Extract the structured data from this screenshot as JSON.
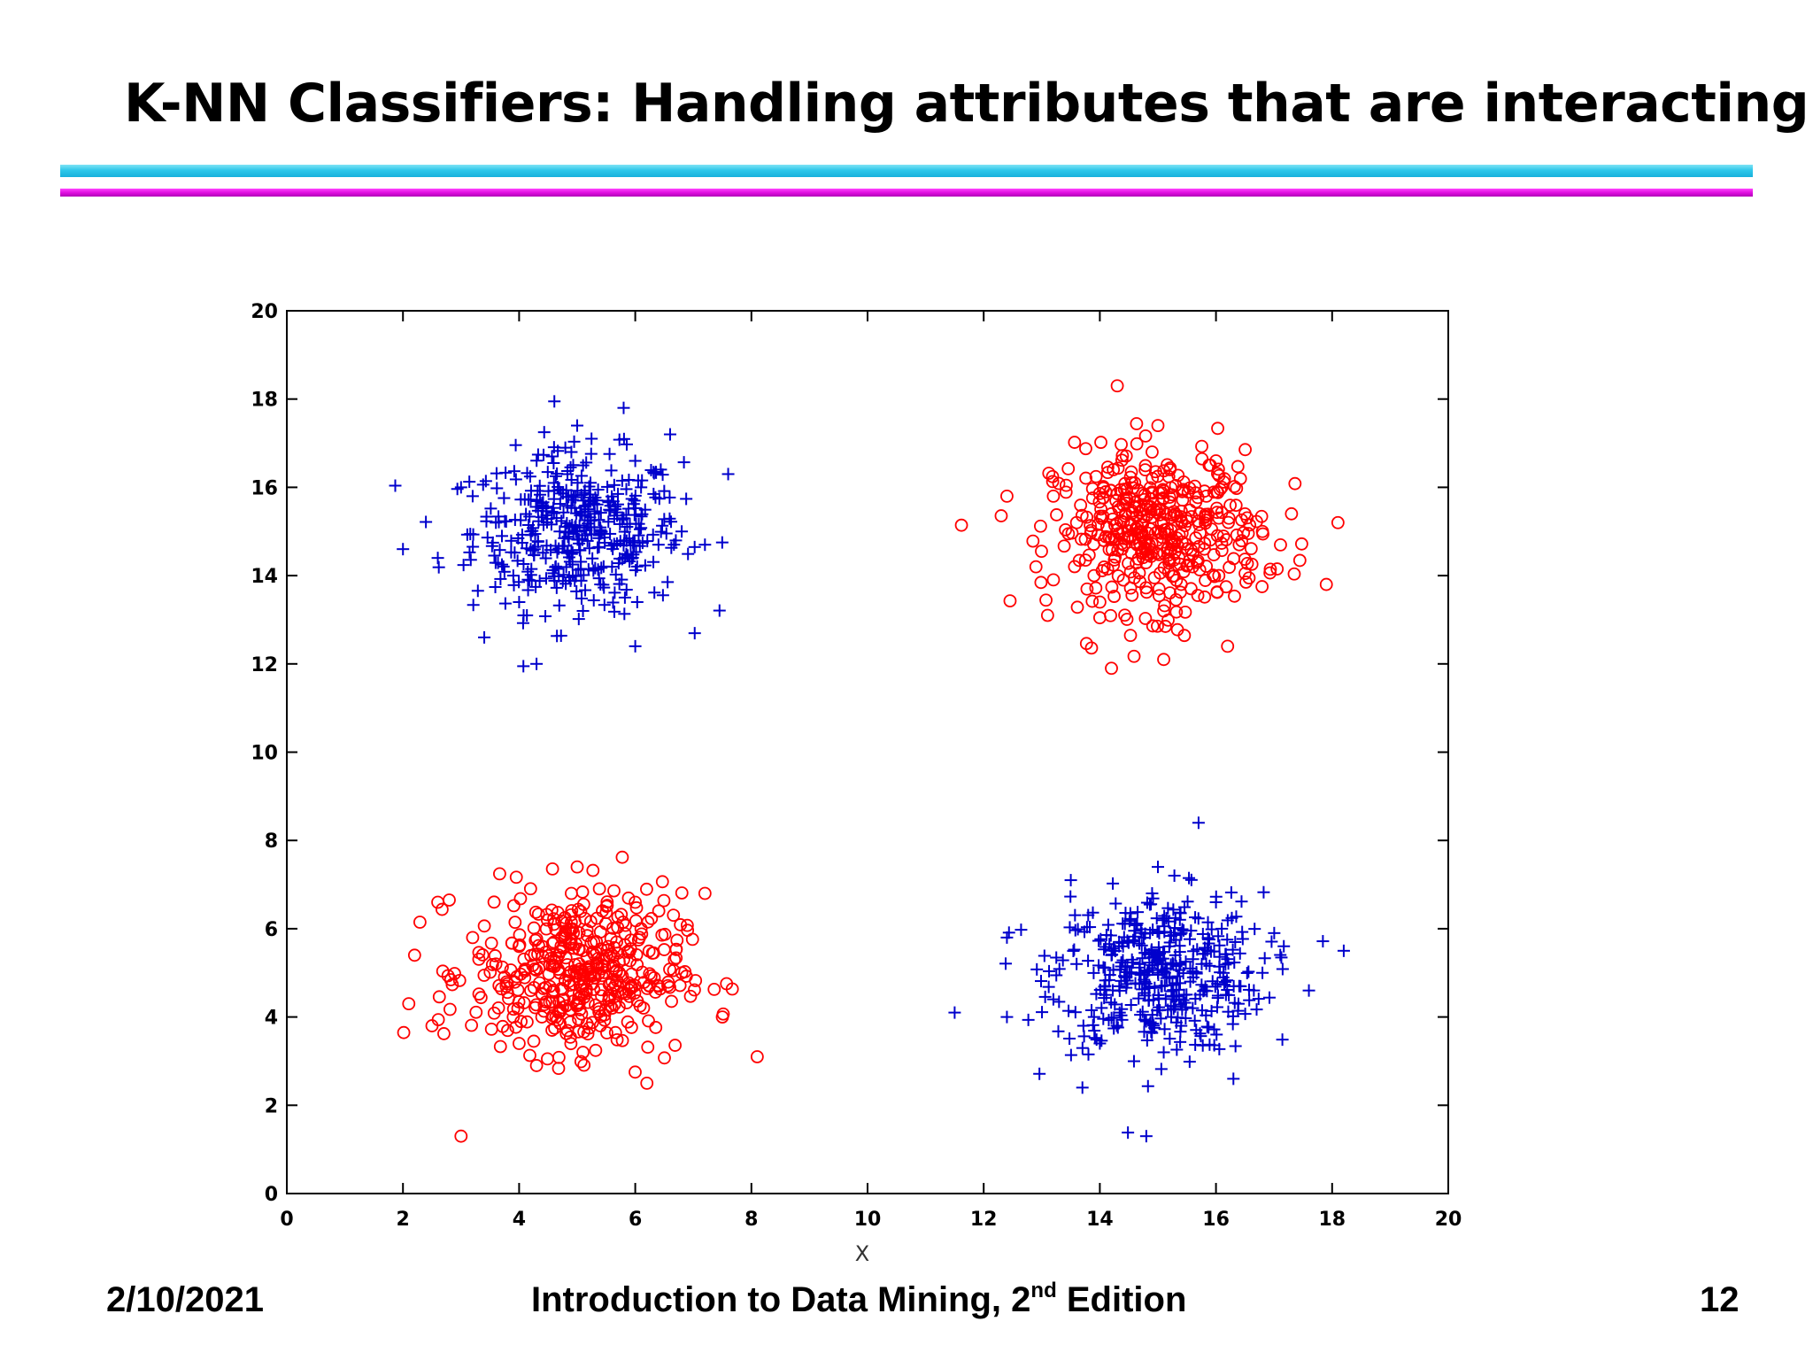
{
  "slide": {
    "title": "K-NN Classifiers: Handling attributes that are interacting"
  },
  "footer": {
    "date": "2/10/2021",
    "book_title_prefix": "Introduction to Data Mining, 2",
    "book_title_sup": "nd",
    "book_title_suffix": " Edition",
    "page_number": "12"
  },
  "chart_data": {
    "type": "scatter",
    "title": "",
    "xlabel": "X",
    "ylabel": "",
    "xlim": [
      0,
      20
    ],
    "ylim": [
      0,
      20
    ],
    "x_ticks": [
      "0",
      "2",
      "4",
      "6",
      "8",
      "10",
      "12",
      "14",
      "16",
      "18",
      "20"
    ],
    "y_ticks": [
      "0",
      "2",
      "4",
      "6",
      "8",
      "10",
      "12",
      "14",
      "16",
      "18",
      "20"
    ],
    "grid": false,
    "legend": "none",
    "series": [
      {
        "marker": "plus",
        "color": "#0000cc",
        "clusters": [
          {
            "center": [
              5,
              15
            ],
            "spread": 0.9
          },
          {
            "center": [
              15,
              5
            ],
            "spread": 0.9
          }
        ],
        "points": [
          [
            5,
            15
          ],
          [
            4.2,
            14.6
          ],
          [
            5.8,
            15.3
          ],
          [
            4.6,
            16.1
          ],
          [
            5.4,
            13.8
          ],
          [
            3.6,
            15.2
          ],
          [
            6.4,
            14.7
          ],
          [
            4.9,
            16.8
          ],
          [
            5.1,
            13.2
          ],
          [
            3.9,
            14
          ],
          [
            6.1,
            16
          ],
          [
            4.4,
            15.6
          ],
          [
            5.6,
            14.2
          ],
          [
            4.7,
            15
          ],
          [
            5.3,
            15.4
          ],
          [
            3.2,
            15.8
          ],
          [
            6.8,
            15
          ],
          [
            4,
            13.4
          ],
          [
            6,
            16.6
          ],
          [
            5,
            17.4
          ],
          [
            2,
            14.6
          ],
          [
            2.6,
            14.4
          ],
          [
            3,
            16
          ],
          [
            7.6,
            16.3
          ],
          [
            5.8,
            17.8
          ],
          [
            4.3,
            12
          ],
          [
            6,
            12.4
          ],
          [
            3.4,
            12.6
          ],
          [
            7.2,
            14.7
          ],
          [
            6.6,
            17.2
          ],
          [
            15,
            5
          ],
          [
            14.2,
            5.4
          ],
          [
            15.8,
            4.6
          ],
          [
            14.6,
            6.1
          ],
          [
            15.4,
            3.8
          ],
          [
            13.6,
            5.2
          ],
          [
            16.4,
            4.7
          ],
          [
            14.9,
            6.8
          ],
          [
            15.1,
            3.2
          ],
          [
            13.9,
            4
          ],
          [
            16.1,
            6
          ],
          [
            14.4,
            5.6
          ],
          [
            15.6,
            4.2
          ],
          [
            14.7,
            5
          ],
          [
            15.3,
            5.4
          ],
          [
            13.2,
            4.4
          ],
          [
            16.8,
            5
          ],
          [
            14,
            3.4
          ],
          [
            16,
            6.6
          ],
          [
            15,
            7.4
          ],
          [
            11.5,
            4.1
          ],
          [
            12.4,
            4
          ],
          [
            12.4,
            5.8
          ],
          [
            18.2,
            5.5
          ],
          [
            15.7,
            8.4
          ],
          [
            14.8,
            1.3
          ],
          [
            13.7,
            2.4
          ],
          [
            16.3,
            2.6
          ],
          [
            17.6,
            4.6
          ],
          [
            13.5,
            7.1
          ]
        ]
      },
      {
        "marker": "circle",
        "color": "#ff0000",
        "clusters": [
          {
            "center": [
              15,
              15
            ],
            "spread": 0.9
          },
          {
            "center": [
              5,
              5
            ],
            "spread": 0.9
          }
        ],
        "points": [
          [
            15,
            15
          ],
          [
            14.2,
            15.4
          ],
          [
            15.8,
            14.6
          ],
          [
            14.6,
            16.1
          ],
          [
            15.4,
            13.8
          ],
          [
            13.6,
            15.2
          ],
          [
            16.4,
            14.7
          ],
          [
            14.9,
            16.8
          ],
          [
            15.1,
            13.2
          ],
          [
            13.9,
            14
          ],
          [
            16.1,
            16
          ],
          [
            14.4,
            15.6
          ],
          [
            15.6,
            14.2
          ],
          [
            14.7,
            15
          ],
          [
            15.3,
            15.4
          ],
          [
            13.2,
            15.8
          ],
          [
            16.8,
            15
          ],
          [
            14,
            13.4
          ],
          [
            16,
            16.6
          ],
          [
            15,
            17.4
          ],
          [
            12.4,
            15.8
          ],
          [
            12.9,
            14.2
          ],
          [
            17.9,
            13.8
          ],
          [
            18.1,
            15.2
          ],
          [
            14.3,
            18.3
          ],
          [
            14.2,
            11.9
          ],
          [
            15.1,
            12.1
          ],
          [
            16.2,
            12.4
          ],
          [
            17.3,
            15.4
          ],
          [
            13.1,
            13.1
          ],
          [
            5,
            5
          ],
          [
            4.2,
            4.6
          ],
          [
            5.8,
            5.3
          ],
          [
            4.6,
            6.1
          ],
          [
            5.4,
            3.8
          ],
          [
            3.6,
            5.2
          ],
          [
            6.4,
            4.7
          ],
          [
            4.9,
            6.8
          ],
          [
            5.1,
            3.2
          ],
          [
            3.9,
            4
          ],
          [
            6.1,
            6
          ],
          [
            4.4,
            5.6
          ],
          [
            5.6,
            4.2
          ],
          [
            4.7,
            5
          ],
          [
            5.3,
            5.4
          ],
          [
            3.2,
            5.8
          ],
          [
            6.8,
            5
          ],
          [
            4,
            3.4
          ],
          [
            6,
            6.6
          ],
          [
            5,
            7.4
          ],
          [
            2.1,
            4.3
          ],
          [
            2.2,
            5.4
          ],
          [
            2.5,
            3.8
          ],
          [
            2.6,
            6.6
          ],
          [
            3,
            1.3
          ],
          [
            8.1,
            3.1
          ],
          [
            6.2,
            2.5
          ],
          [
            7.5,
            4
          ],
          [
            7.2,
            6.8
          ],
          [
            4.3,
            2.9
          ]
        ]
      }
    ]
  }
}
